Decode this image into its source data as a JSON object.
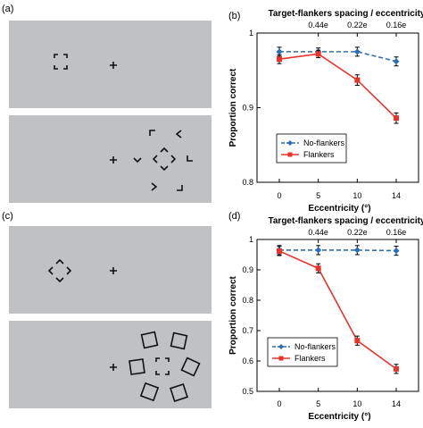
{
  "panels": {
    "a": "(a)",
    "b": "(b)",
    "c": "(c)",
    "d": "(d)"
  },
  "colors": {
    "stimulus_bg": "#bfc1c3",
    "no_flankers": "#2e6db4",
    "flankers": "#e8322a"
  },
  "chart_data": [
    {
      "type": "line",
      "panel": "(b)",
      "title": "Target-flankers spacing / eccentricity",
      "top_ticks": [
        "0.44e",
        "0.22e",
        "0.16e"
      ],
      "xlabel": "Eccentricity (°)",
      "ylabel": "Proportion correct",
      "categories": [
        "0",
        "5",
        "10",
        "14"
      ],
      "ylim": [
        0.8,
        1.0
      ],
      "yticks": [
        "0.8",
        "0.9",
        "1"
      ],
      "legend_position": "lower-left",
      "series": [
        {
          "name": "No-flankers",
          "values": [
            0.975,
            0.975,
            0.975,
            0.962
          ],
          "errors": [
            0.006,
            0.005,
            0.006,
            0.006
          ],
          "style": "dashed",
          "marker": "diamond"
        },
        {
          "name": "Flankers",
          "values": [
            0.965,
            0.972,
            0.937,
            0.886
          ],
          "errors": [
            0.006,
            0.005,
            0.007,
            0.007
          ],
          "style": "solid",
          "marker": "square"
        }
      ]
    },
    {
      "type": "line",
      "panel": "(d)",
      "title": "Target-flankers spacing / eccentricity",
      "top_ticks": [
        "0.44e",
        "0.22e",
        "0.16e"
      ],
      "xlabel": "Eccentricity (°)",
      "ylabel": "Proportion correct",
      "categories": [
        "0",
        "5",
        "10",
        "14"
      ],
      "ylim": [
        0.5,
        1.0
      ],
      "yticks": [
        "0.5",
        "0.6",
        "0.7",
        "0.8",
        "0.9",
        "1"
      ],
      "legend_position": "lower-left",
      "series": [
        {
          "name": "No-flankers",
          "values": [
            0.965,
            0.965,
            0.965,
            0.963
          ],
          "errors": [
            0.015,
            0.015,
            0.015,
            0.015
          ],
          "style": "dashed",
          "marker": "diamond"
        },
        {
          "name": "Flankers",
          "values": [
            0.962,
            0.905,
            0.667,
            0.574
          ],
          "errors": [
            0.015,
            0.015,
            0.015,
            0.015
          ],
          "style": "solid",
          "marker": "square"
        }
      ]
    }
  ]
}
